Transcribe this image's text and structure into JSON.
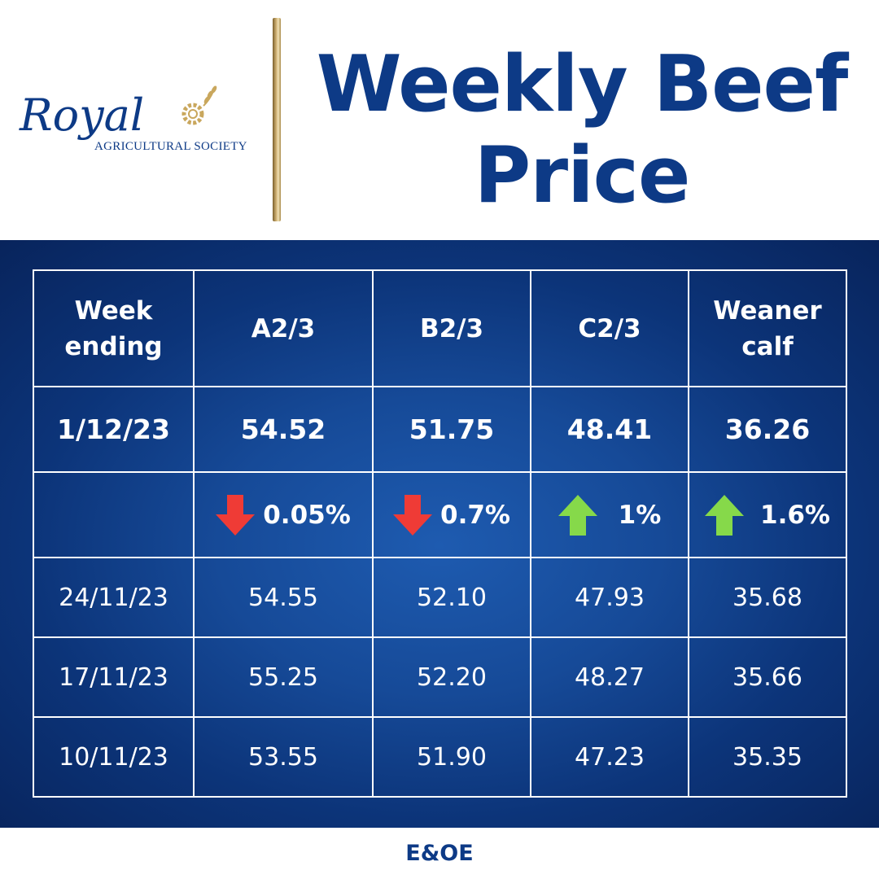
{
  "logo": {
    "brand": "Royal",
    "subtitle": "AGRICULTURAL SOCIETY"
  },
  "title": {
    "line1": "Weekly Beef",
    "line2": "Price"
  },
  "colors": {
    "navy": "#0d3a86",
    "down": "#ef3b36",
    "up": "#86d94a",
    "gold": "#c9a75d"
  },
  "table": {
    "headers": [
      {
        "line1": "Week",
        "line2": "ending"
      },
      {
        "line1": "A2/3",
        "line2": ""
      },
      {
        "line1": "B2/3",
        "line2": ""
      },
      {
        "line1": "C2/3",
        "line2": ""
      },
      {
        "line1": "Weaner",
        "line2": "calf"
      }
    ],
    "latest": {
      "week": "1/12/23",
      "values": [
        "54.52",
        "51.75",
        "48.41",
        "36.26"
      ]
    },
    "changes": [
      {
        "direction": "down",
        "icon": "arrow-down-icon",
        "value": "0.05%"
      },
      {
        "direction": "down",
        "icon": "arrow-down-icon",
        "value": "0.7%"
      },
      {
        "direction": "up",
        "icon": "arrow-up-icon",
        "value": "1%"
      },
      {
        "direction": "up",
        "icon": "arrow-up-icon",
        "value": "1.6%"
      }
    ],
    "history": [
      {
        "week": "24/11/23",
        "values": [
          "54.55",
          "52.10",
          "47.93",
          "35.68"
        ]
      },
      {
        "week": "17/11/23",
        "values": [
          "55.25",
          "52.20",
          "48.27",
          "35.66"
        ]
      },
      {
        "week": "10/11/23",
        "values": [
          "53.55",
          "51.90",
          "47.23",
          "35.35"
        ]
      }
    ]
  },
  "footer": {
    "text": "E&OE"
  }
}
